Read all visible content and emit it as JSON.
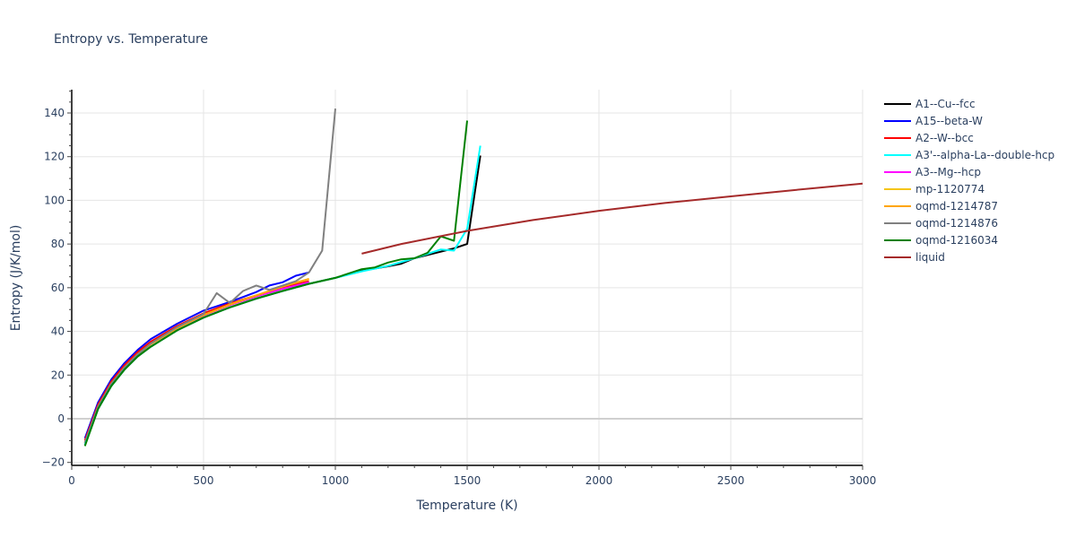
{
  "chart_data": {
    "type": "line",
    "title": "Entropy vs. Temperature",
    "xlabel": "Temperature (K)",
    "ylabel": "Entropy (J/K/mol)",
    "xlim": [
      0,
      3000
    ],
    "ylim": [
      -21,
      151
    ],
    "xticks": [
      0,
      500,
      1000,
      1500,
      2000,
      2500,
      3000
    ],
    "xtick_labels": [
      "0",
      "500",
      "1000",
      "1500",
      "2000",
      "2500",
      "3000"
    ],
    "yticks": [
      -20,
      0,
      20,
      40,
      60,
      80,
      100,
      120,
      140
    ],
    "ytick_labels": [
      "−20",
      "0",
      "20",
      "40",
      "60",
      "80",
      "100",
      "120",
      "140"
    ],
    "grid": true,
    "legend_position": "right",
    "series": [
      {
        "name": "A1--Cu--fcc",
        "color": "#000000",
        "x": [
          50,
          100,
          150,
          200,
          250,
          300,
          400,
          500,
          600,
          700,
          800,
          900,
          1000,
          1100,
          1200,
          1250,
          1300,
          1400,
          1450,
          1500,
          1550
        ],
        "y": [
          -12,
          4.5,
          15,
          22.5,
          28.5,
          33,
          40.5,
          46.3,
          51,
          55,
          58.5,
          61.8,
          64.5,
          67.8,
          69.8,
          71,
          73.5,
          76.5,
          78,
          80,
          120.5
        ]
      },
      {
        "name": "A15--beta-W",
        "color": "#0000ff",
        "x": [
          50,
          100,
          150,
          200,
          250,
          300,
          400,
          500,
          600,
          700,
          750,
          800,
          850,
          900
        ],
        "y": [
          -9,
          7.5,
          18,
          25.5,
          31.5,
          36.5,
          43.5,
          49.5,
          53.5,
          58,
          61,
          62.5,
          65.5,
          67
        ]
      },
      {
        "name": "A2--W--bcc",
        "color": "#ff0000",
        "x": [
          50,
          100,
          150,
          200,
          250,
          300,
          400,
          500,
          600,
          700,
          800,
          900
        ],
        "y": [
          -10,
          6.5,
          17,
          24.5,
          30.5,
          35.3,
          42.5,
          48.3,
          52.8,
          56.5,
          60,
          63
        ]
      },
      {
        "name": "A3'--alpha-La--double-hcp",
        "color": "#00ffff",
        "x": [
          50,
          100,
          150,
          200,
          250,
          300,
          400,
          500,
          600,
          700,
          800,
          900,
          1000,
          1100,
          1200,
          1300,
          1400,
          1450,
          1500,
          1550
        ],
        "y": [
          -12,
          4.5,
          15,
          22.5,
          28.5,
          33,
          40.5,
          46.3,
          51,
          55,
          58.5,
          61.8,
          64.5,
          67.5,
          70,
          73.5,
          77.5,
          77,
          87,
          125
        ]
      },
      {
        "name": "A3--Mg--hcp",
        "color": "#ff00ff",
        "x": [
          50,
          100,
          150,
          200,
          250,
          300,
          400,
          500,
          600,
          700,
          800,
          900
        ],
        "y": [
          -11,
          5.5,
          16,
          23.5,
          29.5,
          34.2,
          41.5,
          47.3,
          52,
          56,
          59.5,
          62.5
        ]
      },
      {
        "name": "mp-1120774",
        "color": "#f5c518",
        "x": [
          50,
          100,
          150,
          200,
          250,
          300,
          400,
          500,
          600,
          700,
          800,
          900
        ],
        "y": [
          -11,
          5.5,
          16,
          23.5,
          29.5,
          34.2,
          41.5,
          47.5,
          52.3,
          56.5,
          60.5,
          64
        ]
      },
      {
        "name": "oqmd-1214787",
        "color": "#ffa500",
        "x": [
          50,
          100,
          150,
          200,
          250,
          300,
          400,
          500,
          600,
          700,
          800,
          900
        ],
        "y": [
          -11,
          5.5,
          16,
          23.5,
          29.5,
          34.2,
          41.5,
          47.5,
          52.3,
          56.5,
          60.5,
          64
        ]
      },
      {
        "name": "oqmd-1214876",
        "color": "#808080",
        "x": [
          50,
          100,
          150,
          200,
          250,
          300,
          400,
          500,
          550,
          600,
          650,
          700,
          750,
          800,
          850,
          900,
          950,
          1000
        ],
        "y": [
          -11,
          5.5,
          16,
          23.5,
          29.5,
          34.5,
          42,
          48,
          57.5,
          53,
          58.5,
          61,
          59,
          61,
          63,
          67,
          77,
          142
        ]
      },
      {
        "name": "oqmd-1216034",
        "color": "#008000",
        "x": [
          50,
          100,
          150,
          200,
          250,
          300,
          400,
          500,
          600,
          700,
          800,
          900,
          1000,
          1100,
          1150,
          1200,
          1250,
          1300,
          1350,
          1400,
          1450,
          1500
        ],
        "y": [
          -12.5,
          4.5,
          15,
          22.5,
          28.5,
          33,
          40.5,
          46.3,
          51,
          55,
          58.5,
          61.8,
          64.5,
          68.5,
          69.3,
          71.5,
          73,
          73.5,
          76,
          83.5,
          81.5,
          136.5
        ]
      },
      {
        "name": "liquid",
        "color": "#a52a2a",
        "x": [
          1100,
          1250,
          1500,
          1750,
          2000,
          2250,
          2500,
          2750,
          3000
        ],
        "y": [
          75.6,
          80,
          86,
          91,
          95.2,
          98.8,
          101.8,
          104.8,
          107.7
        ]
      }
    ]
  },
  "title": "Entropy vs. Temperature",
  "xaxis": {
    "title": "Temperature (K)"
  },
  "yaxis": {
    "title": "Entropy (J/K/mol)"
  },
  "legend": {
    "items": [
      {
        "label": "A1--Cu--fcc",
        "color": "#000000"
      },
      {
        "label": "A15--beta-W",
        "color": "#0000ff"
      },
      {
        "label": "A2--W--bcc",
        "color": "#ff0000"
      },
      {
        "label": "A3'--alpha-La--double-hcp",
        "color": "#00ffff"
      },
      {
        "label": "A3--Mg--hcp",
        "color": "#ff00ff"
      },
      {
        "label": "mp-1120774",
        "color": "#f5c518"
      },
      {
        "label": "oqmd-1214787",
        "color": "#ffa500"
      },
      {
        "label": "oqmd-1214876",
        "color": "#808080"
      },
      {
        "label": "oqmd-1216034",
        "color": "#008000"
      },
      {
        "label": "liquid",
        "color": "#a52a2a"
      }
    ]
  }
}
